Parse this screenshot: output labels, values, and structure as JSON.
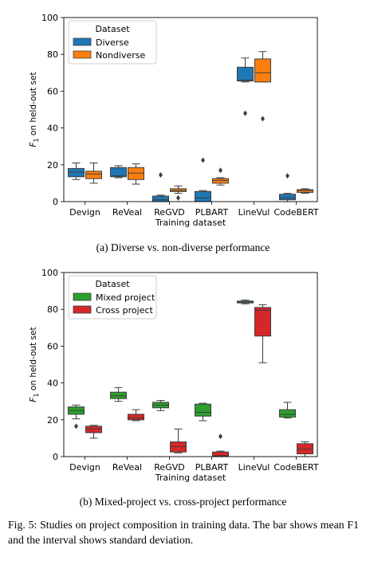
{
  "figure": {
    "caption_label": "Fig. 5:",
    "caption_text": "Studies on project composition in training data. The bar shows mean F1 and the interval shows standard deviation."
  },
  "chart_data": [
    {
      "type": "box",
      "subcaption": "(a) Diverse vs. non-diverse performance",
      "xlabel": "Training dataset",
      "ylabel_main": "F",
      "ylabel_sub": "1",
      "ylabel_rest": " on held-out set",
      "ylim": [
        0,
        100
      ],
      "yticks": [
        0,
        20,
        40,
        60,
        80,
        100
      ],
      "categories": [
        "Devign",
        "ReVeal",
        "ReGVD",
        "PLBART",
        "LineVul",
        "CodeBERT"
      ],
      "legend": {
        "title": "Dataset",
        "position": "upper-left"
      },
      "series": [
        {
          "name": "Diverse",
          "color": "#1f77b4",
          "boxes": [
            {
              "whislo": 12,
              "q1": 13.5,
              "med": 16,
              "q3": 18,
              "whishi": 21,
              "fliers": []
            },
            {
              "whislo": 13,
              "q1": 13.5,
              "med": 14,
              "q3": 18.5,
              "whishi": 19.5,
              "fliers": []
            },
            {
              "whislo": 0,
              "q1": 0,
              "med": 1,
              "q3": 3,
              "whishi": 3.5,
              "fliers": [
                14.5
              ]
            },
            {
              "whislo": 0,
              "q1": 0,
              "med": 2,
              "q3": 5.5,
              "whishi": 6,
              "fliers": [
                22.5
              ]
            },
            {
              "whislo": 65,
              "q1": 65.5,
              "med": 66,
              "q3": 73,
              "whishi": 78,
              "fliers": [
                48
              ]
            },
            {
              "whislo": 0,
              "q1": 1,
              "med": 2,
              "q3": 4,
              "whishi": 4.5,
              "fliers": [
                14
              ]
            }
          ]
        },
        {
          "name": "Nondiverse",
          "color": "#ff7f0e",
          "boxes": [
            {
              "whislo": 10,
              "q1": 12.5,
              "med": 15,
              "q3": 16.5,
              "whishi": 21,
              "fliers": []
            },
            {
              "whislo": 9.5,
              "q1": 12,
              "med": 15.5,
              "q3": 18.5,
              "whishi": 20.5,
              "fliers": []
            },
            {
              "whislo": 4.5,
              "q1": 5.5,
              "med": 6,
              "q3": 7,
              "whishi": 8.5,
              "fliers": [
                2
              ]
            },
            {
              "whislo": 9,
              "q1": 10,
              "med": 11.5,
              "q3": 12.5,
              "whishi": 13,
              "fliers": [
                17
              ]
            },
            {
              "whislo": 65,
              "q1": 65,
              "med": 70,
              "q3": 77.5,
              "whishi": 81.5,
              "fliers": [
                45
              ]
            },
            {
              "whislo": 4.5,
              "q1": 5,
              "med": 6,
              "q3": 6.5,
              "whishi": 7,
              "fliers": []
            }
          ]
        }
      ]
    },
    {
      "type": "box",
      "subcaption": "(b) Mixed-project vs. cross-project performance",
      "xlabel": "Training dataset",
      "ylabel_main": "F",
      "ylabel_sub": "1",
      "ylabel_rest": " on held-out set",
      "ylim": [
        0,
        100
      ],
      "yticks": [
        0,
        20,
        40,
        60,
        80,
        100
      ],
      "categories": [
        "Devign",
        "ReVeal",
        "ReGVD",
        "PLBART",
        "LineVul",
        "CodeBERT"
      ],
      "legend": {
        "title": "Dataset",
        "position": "upper-left"
      },
      "series": [
        {
          "name": "Mixed project",
          "color": "#2ca02c",
          "boxes": [
            {
              "whislo": 20.5,
              "q1": 23,
              "med": 25,
              "q3": 27,
              "whishi": 28,
              "fliers": [
                16.5
              ]
            },
            {
              "whislo": 30,
              "q1": 31.5,
              "med": 33,
              "q3": 35,
              "whishi": 37.5,
              "fliers": []
            },
            {
              "whislo": 25,
              "q1": 26.5,
              "med": 28,
              "q3": 29.5,
              "whishi": 30.5,
              "fliers": []
            },
            {
              "whislo": 19.5,
              "q1": 22,
              "med": 24,
              "q3": 28.5,
              "whishi": 29,
              "fliers": []
            },
            {
              "whislo": 83,
              "q1": 83.5,
              "med": 84,
              "q3": 84.5,
              "whishi": 85,
              "fliers": []
            },
            {
              "whislo": 21,
              "q1": 21.5,
              "med": 23,
              "q3": 25.5,
              "whishi": 29.5,
              "fliers": []
            }
          ]
        },
        {
          "name": "Cross project",
          "color": "#d62728",
          "boxes": [
            {
              "whislo": 10,
              "q1": 13,
              "med": 15,
              "q3": 16.5,
              "whishi": 17,
              "fliers": []
            },
            {
              "whislo": 19.5,
              "q1": 20,
              "med": 21,
              "q3": 23,
              "whishi": 25.5,
              "fliers": []
            },
            {
              "whislo": 2,
              "q1": 2.5,
              "med": 5.5,
              "q3": 8,
              "whishi": 15,
              "fliers": []
            },
            {
              "whislo": 0,
              "q1": 0,
              "med": 0.5,
              "q3": 2.5,
              "whishi": 3,
              "fliers": [
                11
              ]
            },
            {
              "whislo": 51,
              "q1": 65.5,
              "med": 79.5,
              "q3": 81,
              "whishi": 82.5,
              "fliers": []
            },
            {
              "whislo": 0,
              "q1": 1.5,
              "med": 4,
              "q3": 7,
              "whishi": 8,
              "fliers": []
            }
          ]
        }
      ]
    }
  ]
}
